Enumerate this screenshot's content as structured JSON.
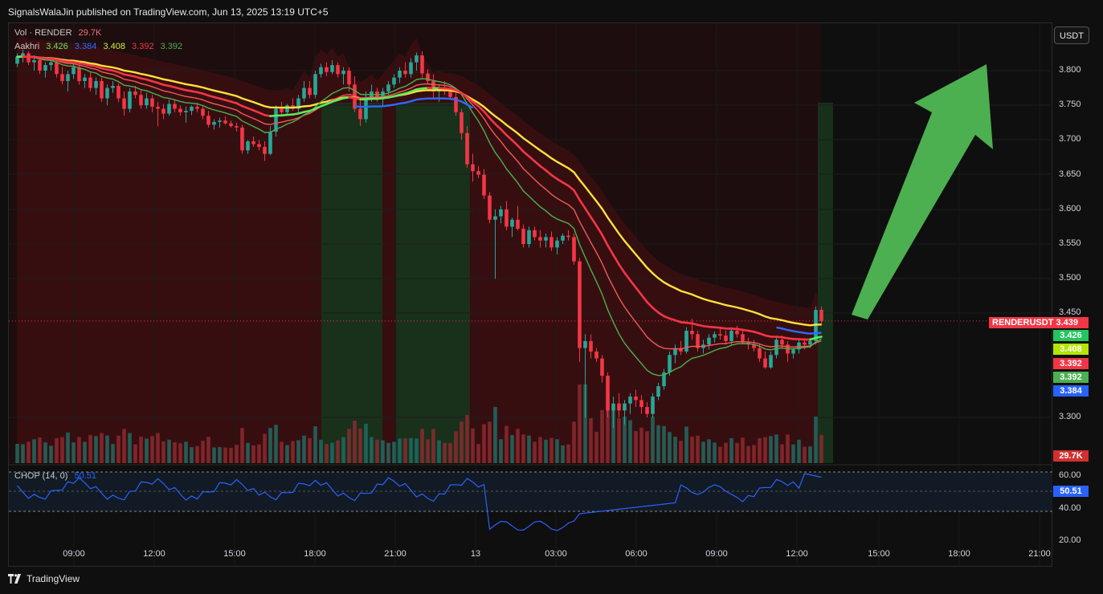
{
  "header": {
    "published_text": "SignalsWalaJin published on TradingView.com, Jun 13, 2025 13:19 UTC+5"
  },
  "legend": {
    "vol_label": "Vol · RENDER",
    "vol_value": "29.7K",
    "ma_label": "Aakhri",
    "ma_values": [
      "3.426",
      "3.384",
      "3.408",
      "3.392",
      "3.392"
    ],
    "ma_colors": [
      "#5ee85e",
      "#2d6bff",
      "#c8f03a",
      "#f23645",
      "#4caf50"
    ]
  },
  "currency_button": "USDT",
  "price_axis": {
    "ticks": [
      "3.800",
      "3.750",
      "3.700",
      "3.650",
      "3.600",
      "3.550",
      "3.500",
      "3.450",
      "3.300"
    ],
    "ticks_values": [
      3.8,
      3.75,
      3.7,
      3.65,
      3.6,
      3.55,
      3.5,
      3.45,
      3.3
    ]
  },
  "price_badges": [
    {
      "text": "RENDERUSDT  3.439",
      "color": "#f23645"
    },
    {
      "text": "3.426",
      "color": "#22c55e"
    },
    {
      "text": "3.408",
      "color": "#b3e600"
    },
    {
      "text": "3.392",
      "color": "#f23645"
    },
    {
      "text": "3.392",
      "color": "#4caf50"
    },
    {
      "text": "3.384",
      "color": "#2962ff"
    }
  ],
  "volume_badge": "29.7K",
  "chop": {
    "label": "CHOP (14, 0)",
    "value": "50.51",
    "ticks": [
      "60.00",
      "40.00",
      "20.00"
    ],
    "value_badge": "50.51"
  },
  "time_axis": [
    "09:00",
    "12:00",
    "15:00",
    "18:00",
    "21:00",
    "13",
    "03:00",
    "06:00",
    "09:00",
    "12:00",
    "15:00",
    "18:00",
    "21:00"
  ],
  "footer": {
    "brand": "TradingView"
  },
  "colors": {
    "up": "#26a69a",
    "down": "#f23645",
    "ema_yellow": "#ffe23b",
    "ema_green": "#5ee85e",
    "ema_blue": "#2d6bff",
    "ema_red": "#f23645",
    "arrow": "#4caf50"
  },
  "chart_data": {
    "type": "candlestick",
    "symbol": "RENDERUSDT",
    "last_price": 3.439,
    "ylim": [
      3.265,
      3.835
    ],
    "candles": [
      [
        3.81,
        3.825,
        3.805,
        3.82
      ],
      [
        3.82,
        3.83,
        3.812,
        3.825
      ],
      [
        3.825,
        3.828,
        3.808,
        3.812
      ],
      [
        3.812,
        3.822,
        3.8,
        3.815
      ],
      [
        3.815,
        3.818,
        3.795,
        3.8
      ],
      [
        3.8,
        3.812,
        3.79,
        3.808
      ],
      [
        3.808,
        3.816,
        3.8,
        3.812
      ],
      [
        3.812,
        3.815,
        3.79,
        3.795
      ],
      [
        3.795,
        3.805,
        3.78,
        3.785
      ],
      [
        3.785,
        3.8,
        3.77,
        3.795
      ],
      [
        3.795,
        3.81,
        3.788,
        3.805
      ],
      [
        3.805,
        3.808,
        3.78,
        3.785
      ],
      [
        3.785,
        3.795,
        3.775,
        3.79
      ],
      [
        3.79,
        3.798,
        3.77,
        3.775
      ],
      [
        3.775,
        3.79,
        3.765,
        3.785
      ],
      [
        3.785,
        3.79,
        3.755,
        3.76
      ],
      [
        3.76,
        3.78,
        3.75,
        3.775
      ],
      [
        3.775,
        3.785,
        3.768,
        3.778
      ],
      [
        3.778,
        3.782,
        3.755,
        3.76
      ],
      [
        3.76,
        3.77,
        3.735,
        3.745
      ],
      [
        3.745,
        3.775,
        3.74,
        3.77
      ],
      [
        3.77,
        3.778,
        3.76,
        3.765
      ],
      [
        3.765,
        3.772,
        3.745,
        3.75
      ],
      [
        3.75,
        3.768,
        3.745,
        3.76
      ],
      [
        3.76,
        3.765,
        3.74,
        3.748
      ],
      [
        3.748,
        3.755,
        3.72,
        3.745
      ],
      [
        3.745,
        3.752,
        3.73,
        3.738
      ],
      [
        3.738,
        3.758,
        3.735,
        3.752
      ],
      [
        3.752,
        3.758,
        3.74,
        3.745
      ],
      [
        3.745,
        3.75,
        3.735,
        3.74
      ],
      [
        3.74,
        3.748,
        3.725,
        3.742
      ],
      [
        3.742,
        3.75,
        3.736,
        3.748
      ],
      [
        3.748,
        3.754,
        3.74,
        3.745
      ],
      [
        3.745,
        3.75,
        3.73,
        3.735
      ],
      [
        3.735,
        3.742,
        3.718,
        3.722
      ],
      [
        3.722,
        3.73,
        3.715,
        3.726
      ],
      [
        3.726,
        3.732,
        3.718,
        3.728
      ],
      [
        3.728,
        3.734,
        3.722,
        3.724
      ],
      [
        3.724,
        3.728,
        3.718,
        3.72
      ],
      [
        3.72,
        3.725,
        3.712,
        3.718
      ],
      [
        3.718,
        3.722,
        3.68,
        3.685
      ],
      [
        3.685,
        3.7,
        3.68,
        3.698
      ],
      [
        3.698,
        3.705,
        3.69,
        3.694
      ],
      [
        3.694,
        3.7,
        3.685,
        3.69
      ],
      [
        3.69,
        3.698,
        3.67,
        3.68
      ],
      [
        3.68,
        3.72,
        3.678,
        3.712
      ],
      [
        3.712,
        3.75,
        3.705,
        3.745
      ],
      [
        3.745,
        3.755,
        3.735,
        3.74
      ],
      [
        3.74,
        3.752,
        3.738,
        3.75
      ],
      [
        3.75,
        3.76,
        3.742,
        3.745
      ],
      [
        3.745,
        3.765,
        3.74,
        3.76
      ],
      [
        3.76,
        3.785,
        3.755,
        3.775
      ],
      [
        3.775,
        3.785,
        3.76,
        3.765
      ],
      [
        3.765,
        3.8,
        3.76,
        3.795
      ],
      [
        3.795,
        3.81,
        3.79,
        3.805
      ],
      [
        3.805,
        3.812,
        3.792,
        3.798
      ],
      [
        3.798,
        3.815,
        3.795,
        3.808
      ],
      [
        3.808,
        3.812,
        3.79,
        3.795
      ],
      [
        3.795,
        3.805,
        3.78,
        3.8
      ],
      [
        3.8,
        3.805,
        3.77,
        3.78
      ],
      [
        3.78,
        3.792,
        3.74,
        3.745
      ],
      [
        3.745,
        3.76,
        3.72,
        3.73
      ],
      [
        3.73,
        3.77,
        3.725,
        3.762
      ],
      [
        3.762,
        3.78,
        3.755,
        3.77
      ],
      [
        3.77,
        3.775,
        3.755,
        3.76
      ],
      [
        3.76,
        3.775,
        3.75,
        3.77
      ],
      [
        3.77,
        3.785,
        3.765,
        3.78
      ],
      [
        3.78,
        3.795,
        3.775,
        3.79
      ],
      [
        3.79,
        3.805,
        3.782,
        3.8
      ],
      [
        3.8,
        3.812,
        3.79,
        3.795
      ],
      [
        3.795,
        3.818,
        3.79,
        3.812
      ],
      [
        3.812,
        3.826,
        3.8,
        3.822
      ],
      [
        3.822,
        3.828,
        3.79,
        3.796
      ],
      [
        3.796,
        3.802,
        3.78,
        3.785
      ],
      [
        3.785,
        3.795,
        3.76,
        3.77
      ],
      [
        3.77,
        3.78,
        3.755,
        3.775
      ],
      [
        3.775,
        3.785,
        3.765,
        3.77
      ],
      [
        3.77,
        3.776,
        3.758,
        3.762
      ],
      [
        3.762,
        3.768,
        3.735,
        3.74
      ],
      [
        3.74,
        3.745,
        3.7,
        3.71
      ],
      [
        3.71,
        3.72,
        3.66,
        3.665
      ],
      [
        3.665,
        3.68,
        3.64,
        3.655
      ],
      [
        3.655,
        3.662,
        3.645,
        3.65
      ],
      [
        3.65,
        3.658,
        3.615,
        3.62
      ],
      [
        3.62,
        3.625,
        3.58,
        3.585
      ],
      [
        3.585,
        3.6,
        3.5,
        3.59
      ],
      [
        3.59,
        3.605,
        3.58,
        3.6
      ],
      [
        3.6,
        3.612,
        3.57,
        3.575
      ],
      [
        3.575,
        3.588,
        3.56,
        3.585
      ],
      [
        3.585,
        3.605,
        3.57,
        3.572
      ],
      [
        3.572,
        3.578,
        3.545,
        3.55
      ],
      [
        3.55,
        3.575,
        3.545,
        3.57
      ],
      [
        3.57,
        3.575,
        3.555,
        3.56
      ],
      [
        3.56,
        3.57,
        3.545,
        3.555
      ],
      [
        3.555,
        3.565,
        3.545,
        3.56
      ],
      [
        3.56,
        3.568,
        3.54,
        3.545
      ],
      [
        3.545,
        3.56,
        3.535,
        3.555
      ],
      [
        3.555,
        3.565,
        3.55,
        3.562
      ],
      [
        3.562,
        3.57,
        3.555,
        3.56
      ],
      [
        3.56,
        3.565,
        3.52,
        3.525
      ],
      [
        3.525,
        3.53,
        3.38,
        3.4
      ],
      [
        3.4,
        3.42,
        3.3,
        3.41
      ],
      [
        3.41,
        3.42,
        3.385,
        3.395
      ],
      [
        3.395,
        3.4,
        3.38,
        3.385
      ],
      [
        3.385,
        3.39,
        3.35,
        3.36
      ],
      [
        3.36,
        3.365,
        3.3,
        3.31
      ],
      [
        3.31,
        3.33,
        3.285,
        3.32
      ],
      [
        3.32,
        3.335,
        3.3,
        3.31
      ],
      [
        3.31,
        3.325,
        3.29,
        3.32
      ],
      [
        3.32,
        3.335,
        3.305,
        3.33
      ],
      [
        3.33,
        3.34,
        3.315,
        3.325
      ],
      [
        3.325,
        3.332,
        3.305,
        3.315
      ],
      [
        3.315,
        3.322,
        3.3,
        3.305
      ],
      [
        3.305,
        3.335,
        3.3,
        3.33
      ],
      [
        3.33,
        3.35,
        3.325,
        3.345
      ],
      [
        3.345,
        3.37,
        3.34,
        3.365
      ],
      [
        3.365,
        3.395,
        3.36,
        3.39
      ],
      [
        3.39,
        3.405,
        3.378,
        3.4
      ],
      [
        3.4,
        3.41,
        3.39,
        3.395
      ],
      [
        3.395,
        3.43,
        3.392,
        3.425
      ],
      [
        3.425,
        3.442,
        3.412,
        3.42
      ],
      [
        3.42,
        3.425,
        3.395,
        3.4
      ],
      [
        3.4,
        3.412,
        3.392,
        3.405
      ],
      [
        3.405,
        3.42,
        3.398,
        3.415
      ],
      [
        3.415,
        3.424,
        3.408,
        3.42
      ],
      [
        3.42,
        3.428,
        3.412,
        3.418
      ],
      [
        3.418,
        3.425,
        3.405,
        3.41
      ],
      [
        3.41,
        3.43,
        3.405,
        3.425
      ],
      [
        3.425,
        3.432,
        3.415,
        3.42
      ],
      [
        3.42,
        3.428,
        3.405,
        3.408
      ],
      [
        3.408,
        3.415,
        3.398,
        3.405
      ],
      [
        3.405,
        3.412,
        3.395,
        3.4
      ],
      [
        3.4,
        3.405,
        3.38,
        3.385
      ],
      [
        3.385,
        3.395,
        3.37,
        3.372
      ],
      [
        3.372,
        3.395,
        3.37,
        3.39
      ],
      [
        3.39,
        3.418,
        3.385,
        3.412
      ],
      [
        3.412,
        3.418,
        3.4,
        3.405
      ],
      [
        3.405,
        3.41,
        3.38,
        3.392
      ],
      [
        3.392,
        3.4,
        3.385,
        3.398
      ],
      [
        3.398,
        3.412,
        3.392,
        3.408
      ],
      [
        3.408,
        3.414,
        3.398,
        3.405
      ],
      [
        3.405,
        3.415,
        3.4,
        3.41
      ],
      [
        3.41,
        3.46,
        3.405,
        3.455
      ],
      [
        3.455,
        3.46,
        3.432,
        3.439
      ]
    ],
    "volume_max_label": "29.7K"
  }
}
